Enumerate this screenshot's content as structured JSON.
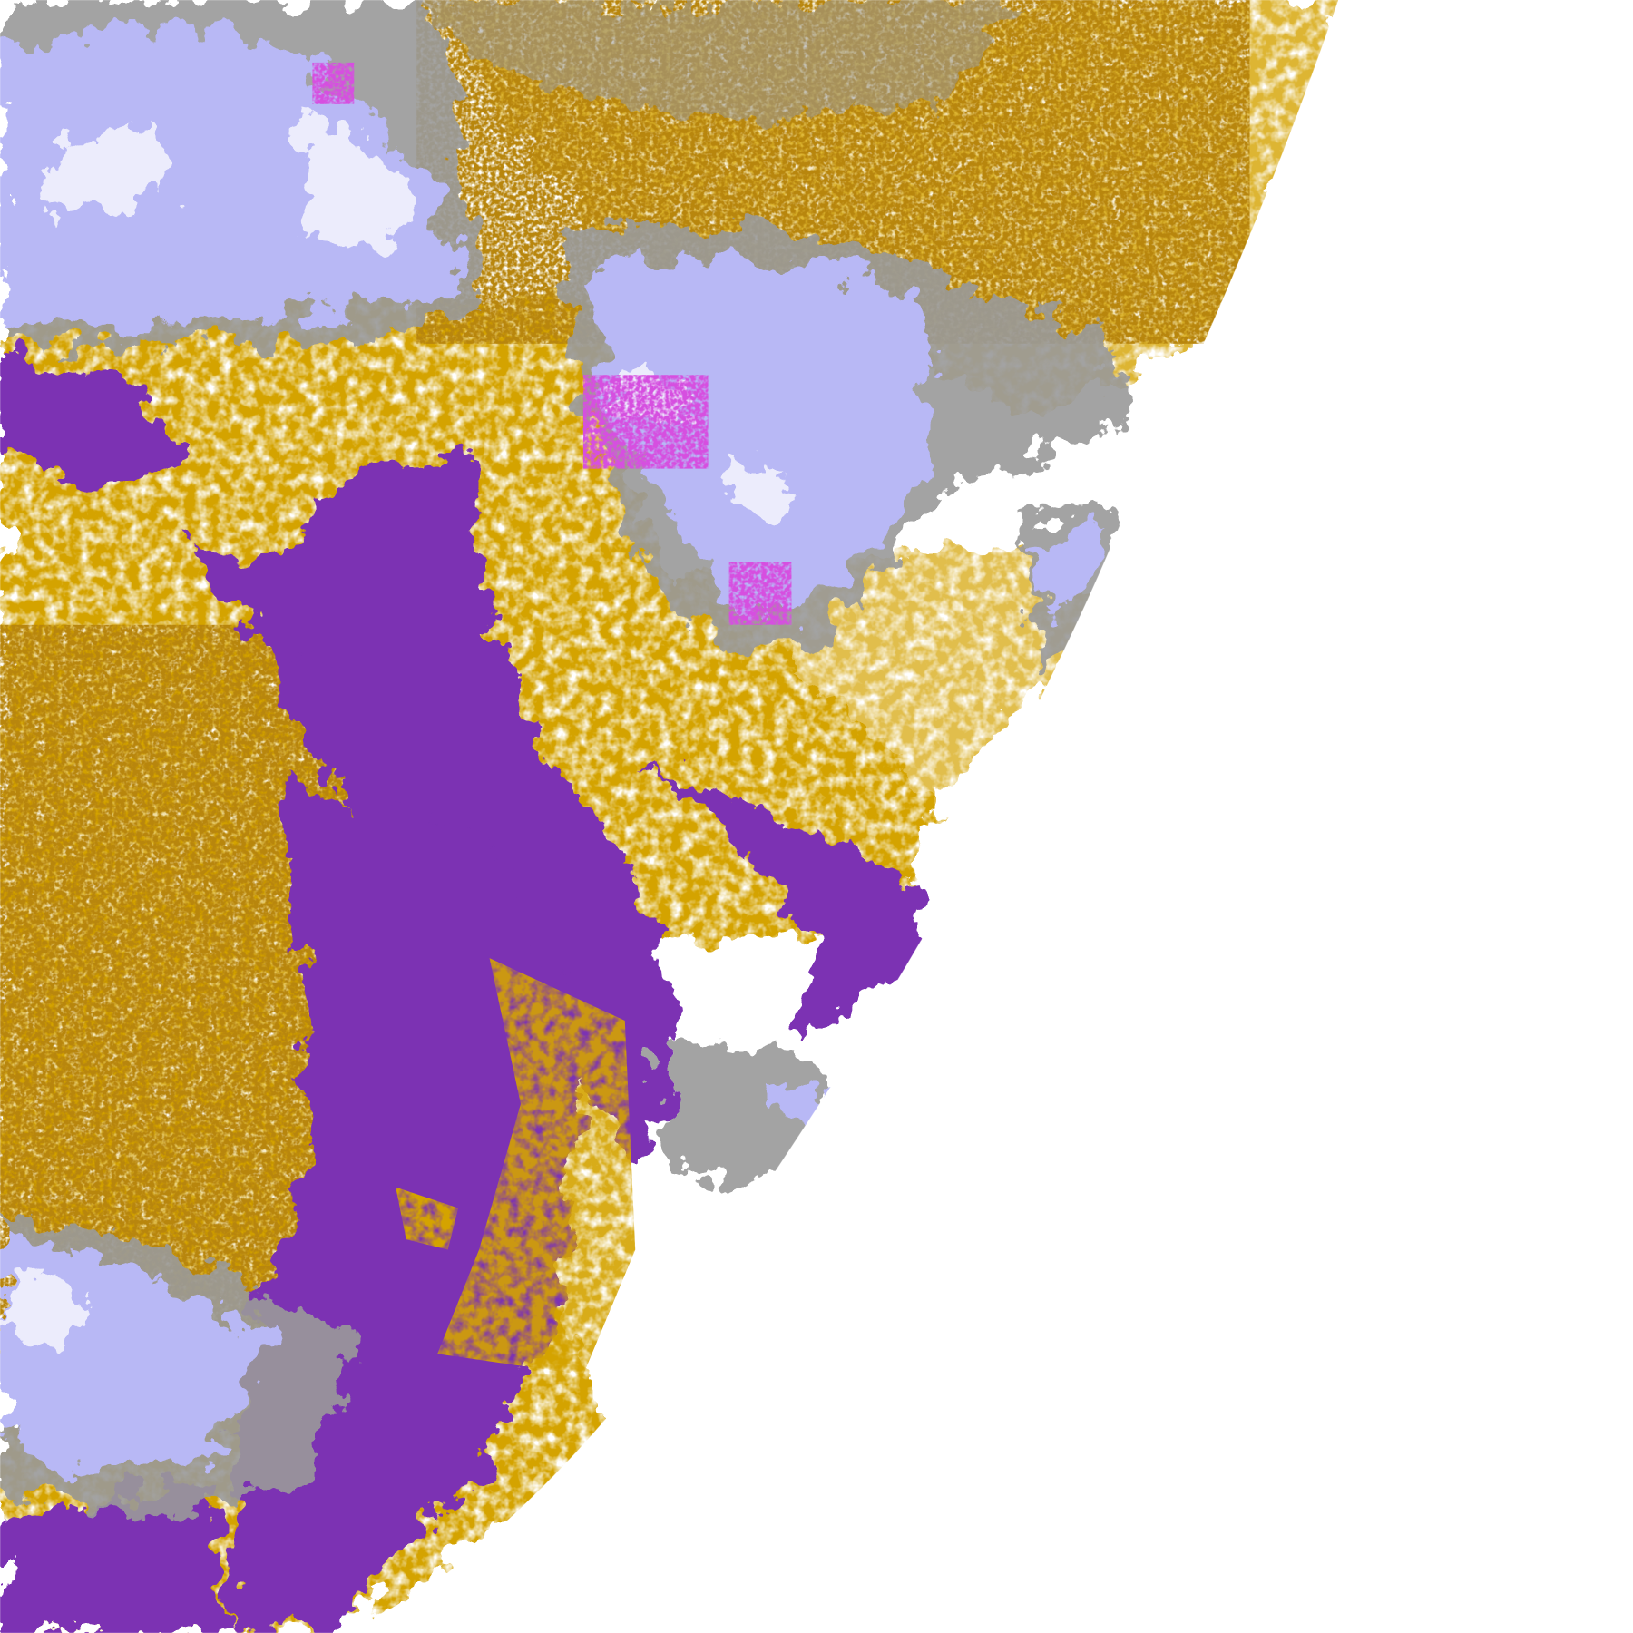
{
  "image": {
    "kind": "satellite cloud classification composite",
    "visible_text": [],
    "colors": {
      "background": "#ffffff",
      "clear_sky": "#ffffff",
      "low_cloud_gold": "#d4a300",
      "dark_gold": "#b8860b",
      "marine_stratus_purple": "#7b33b3",
      "magenta": "#d64fe0",
      "gray_cloud": "#9a9a9a",
      "light_gray": "#c4c4c4",
      "lavender": "#b8b8f5",
      "pale_lavender": "#ececfc",
      "blue_periwinkle": "#8f8ff0"
    }
  }
}
